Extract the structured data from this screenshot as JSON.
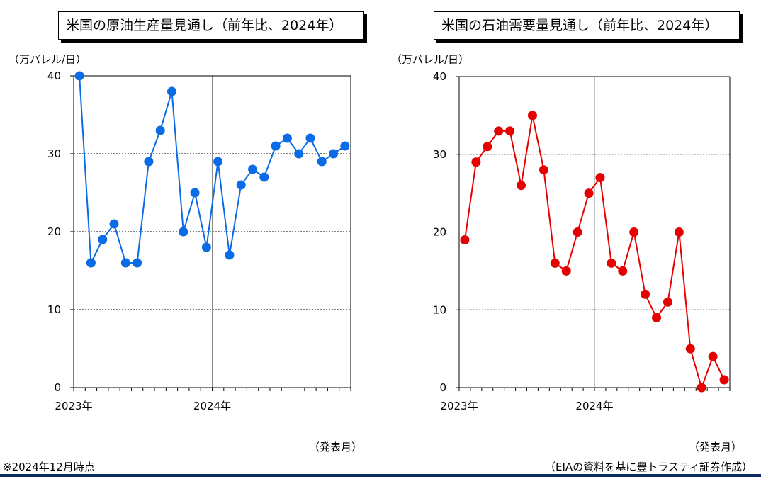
{
  "colors": {
    "left_series": "#0a6be6",
    "right_series": "#e60000",
    "rule": "#0b2b5c"
  },
  "footnote": "※2024年12月時点",
  "source": "（EIAの資料を基に豊トラスティ証券作成）",
  "chart_data": [
    {
      "type": "line",
      "title": "米国の原油生産量見通し（前年比、2024年）",
      "ylabel": "（万バレル/日）",
      "xlabel": "（発表月）",
      "ylim": [
        0,
        40
      ],
      "yticks": [
        "0",
        "10",
        "20",
        "30",
        "40"
      ],
      "x_tick_labels": [
        "2023年",
        "2024年"
      ],
      "x": [
        "2023-01",
        "2023-02",
        "2023-03",
        "2023-04",
        "2023-05",
        "2023-06",
        "2023-07",
        "2023-08",
        "2023-09",
        "2023-10",
        "2023-11",
        "2023-12",
        "2024-01",
        "2024-02",
        "2024-03",
        "2024-04",
        "2024-05",
        "2024-06",
        "2024-07",
        "2024-08",
        "2024-09",
        "2024-10",
        "2024-11",
        "2024-12"
      ],
      "values": [
        40,
        16,
        19,
        21,
        16,
        16,
        29,
        33,
        38,
        20,
        25,
        18,
        29,
        17,
        26,
        28,
        27,
        31,
        32,
        30,
        32,
        29,
        30,
        31
      ],
      "grid": "horizontal dotted"
    },
    {
      "type": "line",
      "title": "米国の石油需要量見通し（前年比、2024年）",
      "ylabel": "（万バレル/日）",
      "xlabel": "（発表月）",
      "ylim": [
        0,
        40
      ],
      "yticks": [
        "0",
        "10",
        "20",
        "30",
        "40"
      ],
      "x_tick_labels": [
        "2023年",
        "2024年"
      ],
      "x": [
        "2023-01",
        "2023-02",
        "2023-03",
        "2023-04",
        "2023-05",
        "2023-06",
        "2023-07",
        "2023-08",
        "2023-09",
        "2023-10",
        "2023-11",
        "2023-12",
        "2024-01",
        "2024-02",
        "2024-03",
        "2024-04",
        "2024-05",
        "2024-06",
        "2024-07",
        "2024-08",
        "2024-09",
        "2024-10",
        "2024-11",
        "2024-12"
      ],
      "values": [
        19,
        29,
        31,
        33,
        33,
        26,
        35,
        28,
        16,
        15,
        20,
        25,
        27,
        16,
        15,
        20,
        12,
        9,
        11,
        20,
        5,
        0,
        4,
        1
      ],
      "grid": "horizontal dotted"
    }
  ]
}
